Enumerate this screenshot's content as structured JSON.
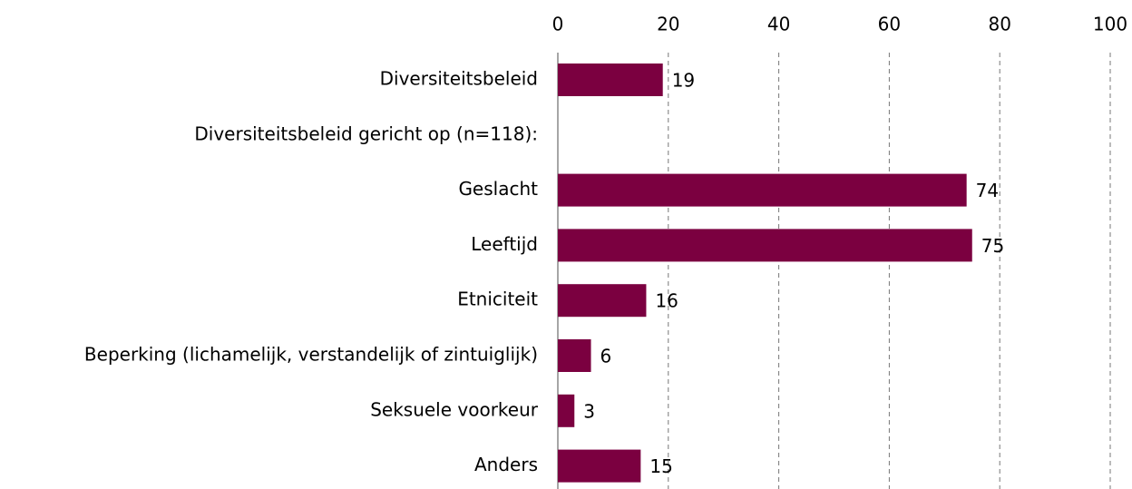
{
  "chart_data": {
    "type": "bar",
    "orientation": "horizontal",
    "categories": [
      "Diversiteitsbeleid",
      "Diversiteitsbeleid gericht op (n=118):",
      "Geslacht",
      "Leeftijd",
      "Etniciteit",
      "Beperking (lichamelijk, verstandelijk of zintuiglijk)",
      "Seksuele voorkeur",
      "Anders"
    ],
    "values": [
      19,
      null,
      74,
      75,
      16,
      6,
      3,
      15
    ],
    "color": "#7b0040",
    "xlim": [
      0,
      100
    ],
    "xticks": [
      0,
      20,
      40,
      60,
      80,
      100
    ],
    "grid": true
  }
}
